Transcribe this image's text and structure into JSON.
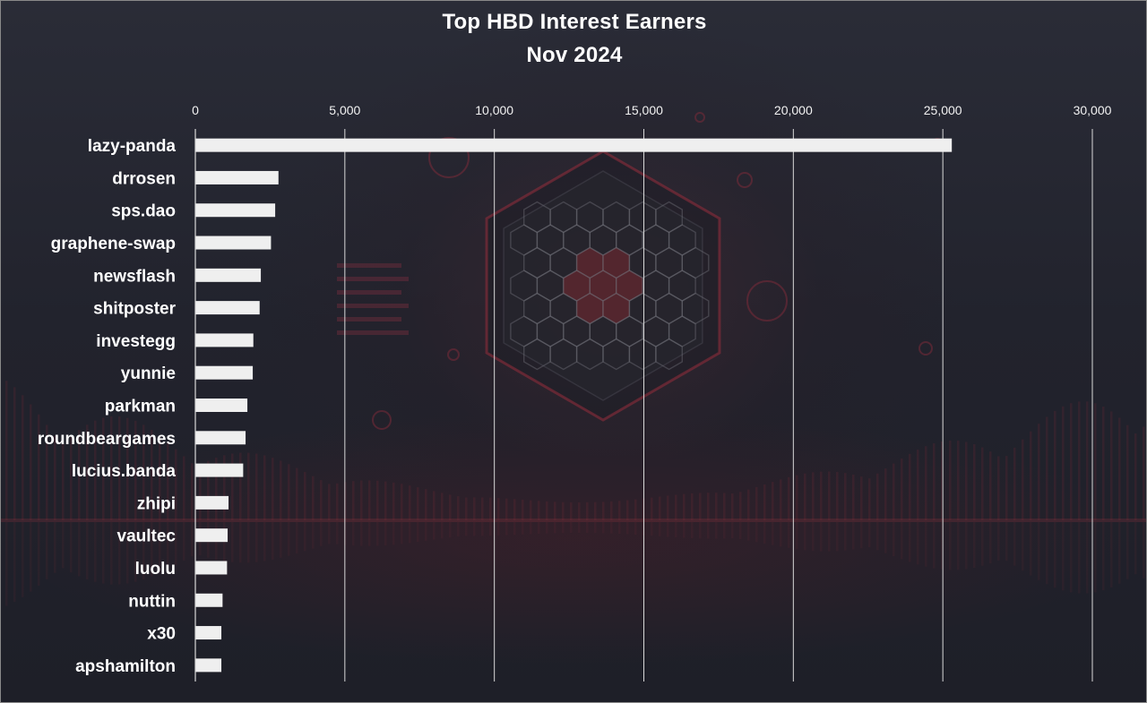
{
  "chart_data": {
    "type": "bar",
    "orientation": "horizontal",
    "title": "Top HBD Interest Earners",
    "subtitle": "Nov 2024",
    "categories": [
      "lazy-panda",
      "drrosen",
      "sps.dao",
      "graphene-swap",
      "newsflash",
      "shitposter",
      "investegg",
      "yunnie",
      "parkman",
      "roundbeargames",
      "lucius.banda",
      "zhipi",
      "vaultec",
      "luolu",
      "nuttin",
      "x30",
      "apshamilton"
    ],
    "values": [
      25300,
      2780,
      2670,
      2530,
      2190,
      2150,
      1940,
      1920,
      1740,
      1680,
      1600,
      1110,
      1080,
      1060,
      910,
      870,
      870
    ],
    "xlim": [
      0,
      30000
    ],
    "xticks": [
      0,
      5000,
      10000,
      15000,
      20000,
      25000,
      30000
    ],
    "xtick_labels": [
      "0",
      "5,000",
      "10,000",
      "15,000",
      "20,000",
      "25,000",
      "30,000"
    ],
    "x_axis_position": "top",
    "grid": true,
    "legend": "none",
    "bar_color": "#efefef",
    "gridline_color": "#d9d9d9",
    "background_color": "#22232d"
  }
}
